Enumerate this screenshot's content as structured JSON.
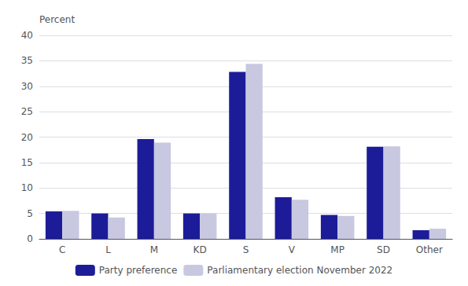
{
  "chart_data": {
    "type": "bar",
    "ylabel": "Percent",
    "categories": [
      "C",
      "L",
      "M",
      "KD",
      "S",
      "V",
      "MP",
      "SD",
      "Other"
    ],
    "series": [
      {
        "name": "Party preference",
        "color": "#1c1c99",
        "values": [
          5.4,
          5.0,
          19.6,
          5.0,
          32.8,
          8.2,
          4.7,
          18.1,
          1.7
        ]
      },
      {
        "name": "Parliamentary election November 2022",
        "color": "#c8c8e0",
        "values": [
          5.5,
          4.2,
          18.9,
          5.0,
          34.4,
          7.7,
          4.5,
          18.2,
          2.0
        ]
      }
    ],
    "ylim": [
      0,
      40
    ],
    "yticks": [
      0,
      5,
      10,
      15,
      20,
      25,
      30,
      35,
      40
    ],
    "grid": true,
    "legend": "bottom"
  }
}
